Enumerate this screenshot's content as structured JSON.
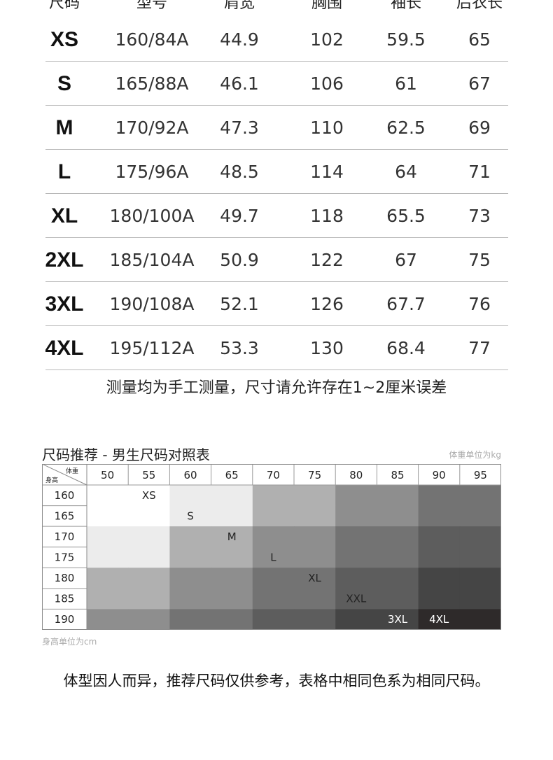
{
  "size_table": {
    "headers": [
      "尺码",
      "型号",
      "肩宽",
      "胸围",
      "袖长",
      "后衣长"
    ],
    "rows": [
      {
        "size": "XS",
        "model": "160/84A",
        "shoulder": "44.9",
        "chest": "102",
        "sleeve": "59.5",
        "length": "65"
      },
      {
        "size": "S",
        "model": "165/88A",
        "shoulder": "46.1",
        "chest": "106",
        "sleeve": "61",
        "length": "67"
      },
      {
        "size": "M",
        "model": "170/92A",
        "shoulder": "47.3",
        "chest": "110",
        "sleeve": "62.5",
        "length": "69"
      },
      {
        "size": "L",
        "model": "175/96A",
        "shoulder": "48.5",
        "chest": "114",
        "sleeve": "64",
        "length": "71"
      },
      {
        "size": "XL",
        "model": "180/100A",
        "shoulder": "49.7",
        "chest": "118",
        "sleeve": "65.5",
        "length": "73"
      },
      {
        "size": "2XL",
        "model": "185/104A",
        "shoulder": "50.9",
        "chest": "122",
        "sleeve": "67",
        "length": "75"
      },
      {
        "size": "3XL",
        "model": "190/108A",
        "shoulder": "52.1",
        "chest": "126",
        "sleeve": "67.7",
        "length": "76"
      },
      {
        "size": "4XL",
        "model": "195/112A",
        "shoulder": "53.3",
        "chest": "130",
        "sleeve": "68.4",
        "length": "77"
      }
    ],
    "note": "测量均为手工测量，尺寸请允许存在1~2厘米误差"
  },
  "recommend": {
    "title": "尺码推荐 - 男生尺码对照表",
    "weight_unit_note": "体重单位为kg",
    "height_unit_note": "身高单位为cm",
    "corner_weight": "体重",
    "corner_height": "身高",
    "weights": [
      "50",
      "55",
      "60",
      "65",
      "70",
      "75",
      "80",
      "85",
      "90",
      "95"
    ],
    "heights": [
      "160",
      "165",
      "170",
      "175",
      "180",
      "185",
      "190"
    ],
    "cell_colors": [
      [
        "#ffffff",
        "#ffffff",
        "#ececec",
        "#ececec",
        "#b0b0b0",
        "#b0b0b0",
        "#8e8e8e",
        "#8e8e8e",
        "#737373",
        "#737373"
      ],
      [
        "#ffffff",
        "#ffffff",
        "#ececec",
        "#ececec",
        "#b0b0b0",
        "#b0b0b0",
        "#8e8e8e",
        "#8e8e8e",
        "#737373",
        "#737373"
      ],
      [
        "#ececec",
        "#ececec",
        "#b0b0b0",
        "#b0b0b0",
        "#8e8e8e",
        "#8e8e8e",
        "#737373",
        "#737373",
        "#5d5d5d",
        "#5d5d5d"
      ],
      [
        "#ececec",
        "#ececec",
        "#b0b0b0",
        "#b0b0b0",
        "#8e8e8e",
        "#8e8e8e",
        "#737373",
        "#737373",
        "#5d5d5d",
        "#5d5d5d"
      ],
      [
        "#b0b0b0",
        "#b0b0b0",
        "#8e8e8e",
        "#8e8e8e",
        "#737373",
        "#737373",
        "#5d5d5d",
        "#5d5d5d",
        "#454545",
        "#454545"
      ],
      [
        "#b0b0b0",
        "#b0b0b0",
        "#8e8e8e",
        "#8e8e8e",
        "#737373",
        "#737373",
        "#5d5d5d",
        "#5d5d5d",
        "#454545",
        "#454545"
      ],
      [
        "#8e8e8e",
        "#8e8e8e",
        "#737373",
        "#737373",
        "#5d5d5d",
        "#5d5d5d",
        "#454545",
        "#454545",
        "#2e2a2a",
        "#2e2a2a"
      ]
    ],
    "size_labels": [
      {
        "text": "XS",
        "row": 0,
        "col": 1,
        "color": "#222222"
      },
      {
        "text": "S",
        "row": 1,
        "col": 2,
        "color": "#222222"
      },
      {
        "text": "M",
        "row": 2,
        "col": 3,
        "color": "#222222"
      },
      {
        "text": "L",
        "row": 3,
        "col": 4,
        "color": "#222222"
      },
      {
        "text": "XL",
        "row": 4,
        "col": 5,
        "color": "#222222"
      },
      {
        "text": "XXL",
        "row": 5,
        "col": 6,
        "color": "#222222"
      },
      {
        "text": "3XL",
        "row": 6,
        "col": 7,
        "color": "#ffffff"
      },
      {
        "text": "4XL",
        "row": 6,
        "col": 8,
        "color": "#ffffff"
      }
    ]
  },
  "footer_note": "体型因人而异，推荐尺码仅供参考，表格中相同色系为相同尺码。"
}
